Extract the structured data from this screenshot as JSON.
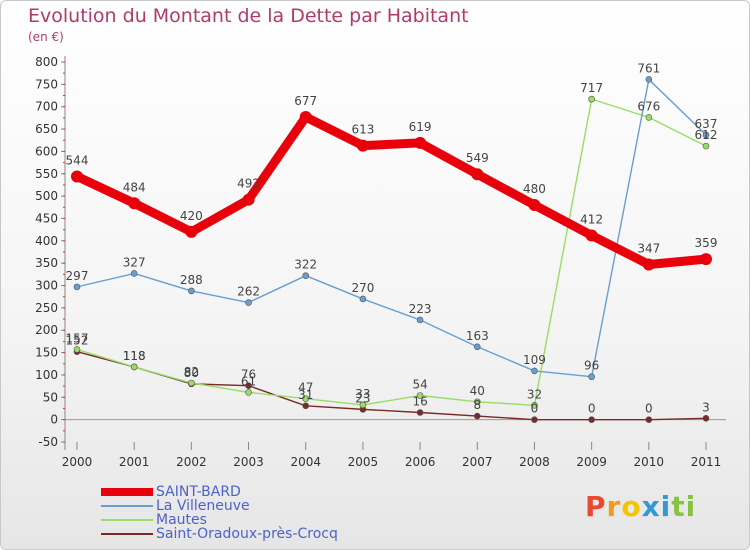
{
  "title": "Evolution du Montant de la Dette par Habitant",
  "unit_label": "(en €)",
  "logo": {
    "letters": [
      {
        "char": "P",
        "color": "#e84a2f"
      },
      {
        "char": "r",
        "color": "#f29a1e"
      },
      {
        "char": "o",
        "color": "#f5c400"
      },
      {
        "char": "x",
        "color": "#2f9ad8"
      },
      {
        "char": "i",
        "color": "#2f9ad8"
      },
      {
        "char": "t",
        "color": "#86c440"
      },
      {
        "char": "i",
        "color": "#86c440"
      }
    ]
  },
  "chart_data": {
    "type": "line",
    "title": "Evolution du Montant de la Dette par Habitant",
    "ylabel": "(en €)",
    "xlabel": "",
    "ylim": [
      -50,
      800
    ],
    "yticks": [
      -50,
      0,
      50,
      100,
      150,
      200,
      250,
      300,
      350,
      400,
      450,
      500,
      550,
      600,
      650,
      700,
      750,
      800
    ],
    "grid": false,
    "legend_position": "bottom-left",
    "categories": [
      "2000",
      "2001",
      "2002",
      "2003",
      "2004",
      "2005",
      "2006",
      "2007",
      "2008",
      "2009",
      "2010",
      "2011"
    ],
    "series": [
      {
        "name": "Saint-Oradoux-près-Crocq",
        "color": "#7a2a2a",
        "values": [
          152,
          118,
          80,
          76,
          31,
          23,
          16,
          8,
          0,
          0,
          0,
          3
        ],
        "labels": [
          "152",
          "118",
          "80",
          "76",
          "31",
          "23",
          "16",
          "8",
          "0",
          "0",
          "0",
          "3"
        ]
      },
      {
        "name": "Mautes",
        "color": "#99dd66",
        "values": [
          157,
          118,
          82,
          61,
          47,
          33,
          54,
          40,
          32,
          717,
          676,
          612
        ],
        "labels": [
          "157",
          "118",
          "82",
          "61",
          "47",
          "33",
          "54",
          "40",
          "32",
          "717",
          "676",
          "612"
        ]
      },
      {
        "name": "La Villeneuve",
        "color": "#6a9ed0",
        "values": [
          297,
          327,
          288,
          262,
          322,
          270,
          223,
          163,
          109,
          96,
          761,
          637
        ],
        "labels": [
          "297",
          "327",
          "288",
          "262",
          "322",
          "270",
          "223",
          "163",
          "109",
          "96",
          "761",
          "637"
        ]
      },
      {
        "name": "SAINT-BARD",
        "color": "#e8000a",
        "values": [
          544,
          484,
          420,
          492,
          677,
          613,
          619,
          549,
          480,
          412,
          347,
          359
        ],
        "labels": [
          "544",
          "484",
          "420",
          "492",
          "677",
          "613",
          "619",
          "549",
          "480",
          "412",
          "347",
          "359"
        ]
      }
    ],
    "legend": [
      {
        "name": "SAINT-BARD",
        "color": "#e8000a"
      },
      {
        "name": "La Villeneuve",
        "color": "#6a9ed0"
      },
      {
        "name": "Mautes",
        "color": "#99dd66"
      },
      {
        "name": "Saint-Oradoux-près-Crocq",
        "color": "#7a2a2a"
      }
    ]
  }
}
